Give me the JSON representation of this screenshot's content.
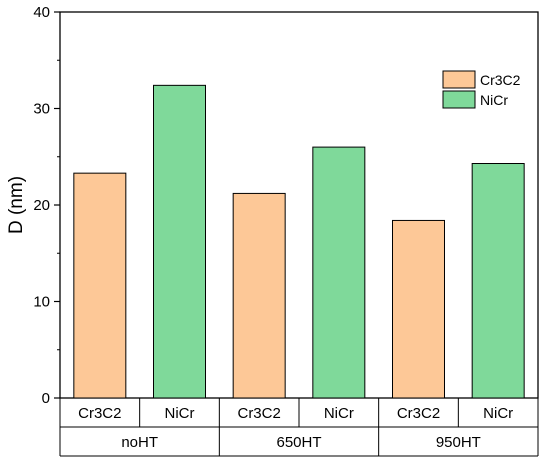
{
  "chart_data": {
    "type": "bar",
    "ylabel": "D (nm)",
    "ylim": [
      0,
      40
    ],
    "y_ticks": [
      "0",
      "10",
      "20",
      "30",
      "40"
    ],
    "groups": [
      "noHT",
      "650HT",
      "950HT"
    ],
    "series": [
      {
        "name": "Cr3C2",
        "color": "#FDC897",
        "values": [
          23.3,
          21.2,
          18.4
        ]
      },
      {
        "name": "NiCr",
        "color": "#7FD99A",
        "values": [
          32.4,
          26.0,
          24.3
        ]
      }
    ],
    "legend_position": "top-right",
    "grid": false
  }
}
